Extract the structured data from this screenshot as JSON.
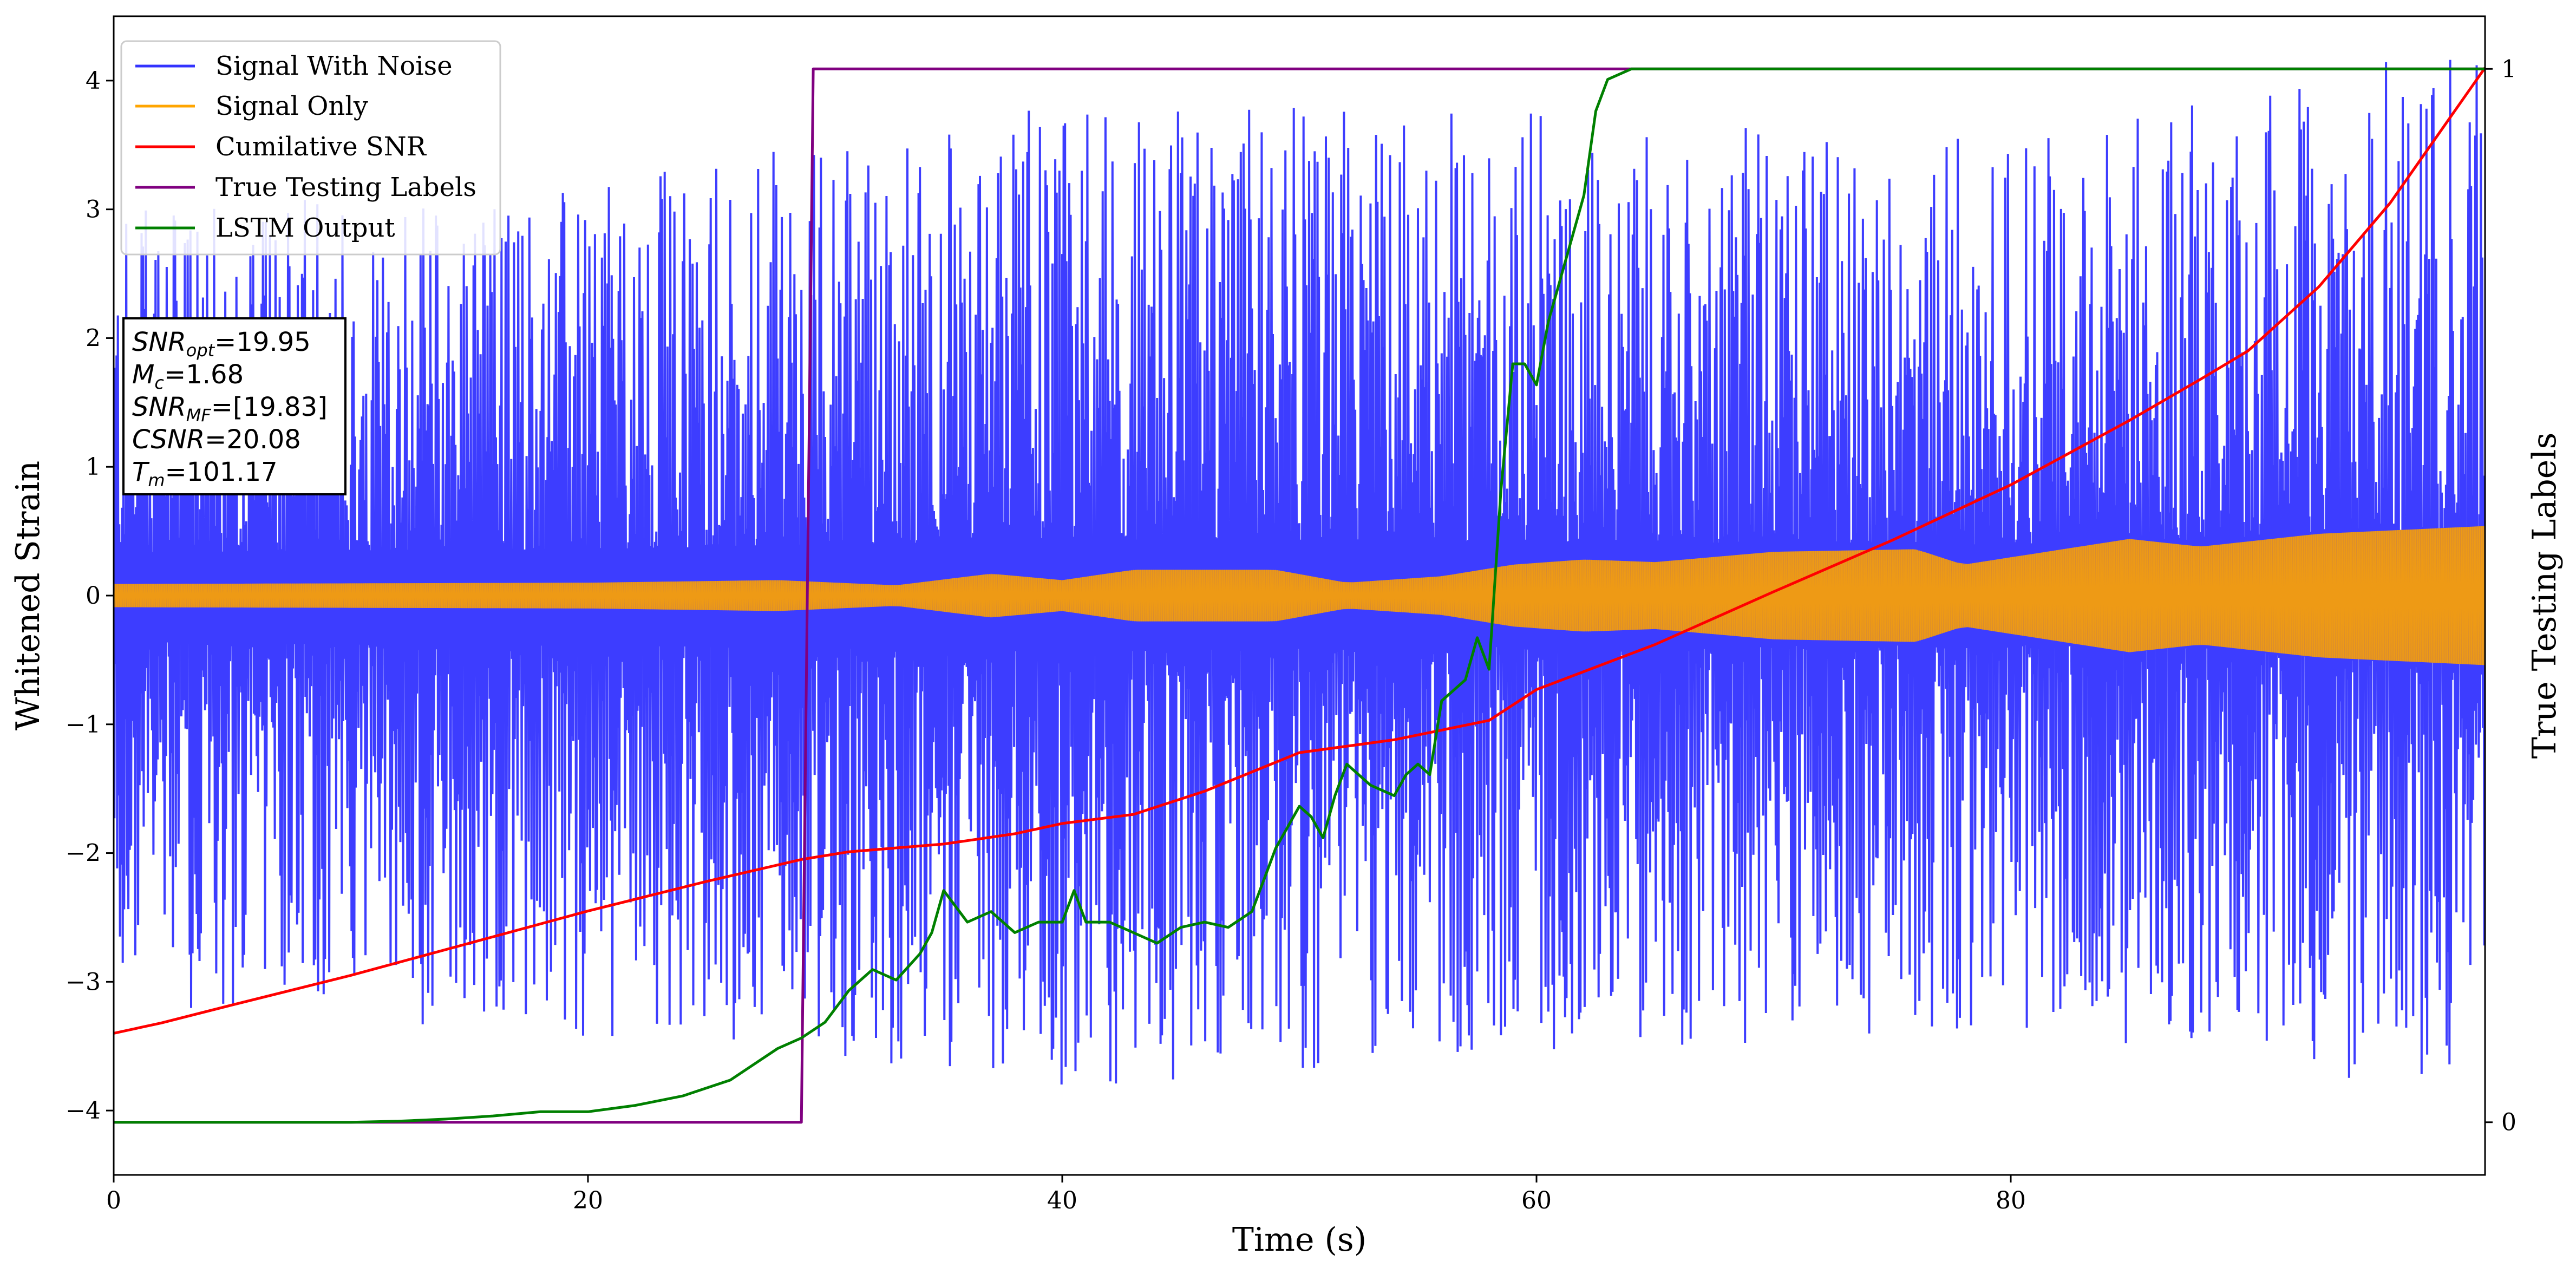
{
  "chart_data": {
    "type": "line",
    "xlabel": "Time (s)",
    "ylabel": "Whitened Strain",
    "y2label": "True Testing Labels",
    "xlim": [
      0,
      100
    ],
    "ylim": [
      -4.5,
      4.5
    ],
    "y2lim": [
      -0.05,
      1.05
    ],
    "x_ticks": [
      0,
      20,
      40,
      60,
      80
    ],
    "y_ticks": [
      -4,
      -3,
      -2,
      -1,
      0,
      1,
      2,
      3,
      4
    ],
    "y2_ticks": [
      0,
      1
    ],
    "grid": false,
    "legend_position": "upper-left",
    "legend": [
      "Signal With Noise",
      "Signal Only",
      "Cumilative SNR",
      "True Testing Labels",
      "LSTM Output"
    ],
    "info_box": [
      {
        "sym": "SNR",
        "sub": "opt",
        "value": "=19.95"
      },
      {
        "sym": "M",
        "sub": "c",
        "value": "=1.68"
      },
      {
        "sym": "SNR",
        "sub": "MF",
        "value": "=[19.83]"
      },
      {
        "sym": "CSNR",
        "sub": "",
        "value": "=20.08"
      },
      {
        "sym": "T",
        "sub": "m",
        "value": "=101.17"
      }
    ],
    "series": [
      {
        "name": "Signal With Noise",
        "color": "#3333ff",
        "axis": "left",
        "description_envelope": [
          {
            "x": 0,
            "upper": 2.8,
            "lower": -3.0
          },
          {
            "x": 20,
            "upper": 3.0,
            "lower": -3.2
          },
          {
            "x": 40,
            "upper": 3.6,
            "lower": -3.6
          },
          {
            "x": 60,
            "upper": 3.5,
            "lower": -3.3
          },
          {
            "x": 80,
            "upper": 3.3,
            "lower": -3.2
          },
          {
            "x": 100,
            "upper": 4.1,
            "lower": -3.7
          }
        ]
      },
      {
        "name": "Signal Only",
        "color": "#ffa500",
        "axis": "left",
        "amplitude": [
          {
            "x": 0,
            "a": 0.09
          },
          {
            "x": 20,
            "a": 0.1
          },
          {
            "x": 28,
            "a": 0.12
          },
          {
            "x": 33,
            "a": 0.08
          },
          {
            "x": 37,
            "a": 0.17
          },
          {
            "x": 40,
            "a": 0.12
          },
          {
            "x": 43,
            "a": 0.2
          },
          {
            "x": 49,
            "a": 0.2
          },
          {
            "x": 52,
            "a": 0.1
          },
          {
            "x": 56,
            "a": 0.15
          },
          {
            "x": 59,
            "a": 0.24
          },
          {
            "x": 62,
            "a": 0.28
          },
          {
            "x": 65,
            "a": 0.26
          },
          {
            "x": 70,
            "a": 0.34
          },
          {
            "x": 76,
            "a": 0.36
          },
          {
            "x": 78,
            "a": 0.24
          },
          {
            "x": 85,
            "a": 0.44
          },
          {
            "x": 88,
            "a": 0.38
          },
          {
            "x": 93,
            "a": 0.48
          },
          {
            "x": 100,
            "a": 0.54
          }
        ]
      },
      {
        "name": "Cumilative SNR",
        "color": "#ff0000",
        "axis": "left",
        "x": [
          0,
          2,
          5,
          10,
          15,
          20,
          25,
          29,
          31,
          35,
          38,
          40,
          43,
          46,
          50,
          54,
          58,
          60,
          65,
          70,
          75,
          80,
          85,
          88,
          90,
          93,
          96,
          100
        ],
        "y": [
          -3.4,
          -3.32,
          -3.18,
          -2.95,
          -2.7,
          -2.45,
          -2.22,
          -2.05,
          -1.99,
          -1.93,
          -1.85,
          -1.77,
          -1.7,
          -1.52,
          -1.22,
          -1.12,
          -0.97,
          -0.73,
          -0.38,
          0.03,
          0.43,
          0.86,
          1.36,
          1.68,
          1.9,
          2.4,
          3.05,
          4.1
        ]
      },
      {
        "name": "True Testing Labels",
        "color": "#800080",
        "axis": "right",
        "x": [
          0,
          29,
          29.5,
          100
        ],
        "y": [
          0,
          0,
          1,
          1
        ]
      },
      {
        "name": "LSTM Output",
        "color": "#008000",
        "axis": "right",
        "x": [
          0,
          10,
          12,
          14,
          16,
          18,
          20,
          22,
          24,
          26,
          27,
          28,
          29,
          30,
          31,
          32,
          33,
          34,
          34.5,
          35,
          36,
          37,
          38,
          39,
          40,
          40.5,
          41,
          42,
          43,
          44,
          45,
          46,
          47,
          48,
          49,
          50,
          50.5,
          51,
          51.5,
          52,
          52.5,
          53,
          54,
          54.5,
          55,
          55.5,
          56,
          57,
          57.5,
          58,
          58.5,
          59,
          59.5,
          60,
          60.5,
          61,
          62,
          62.5,
          63,
          64,
          65,
          66,
          68,
          100
        ],
        "y": [
          0,
          0,
          0.001,
          0.003,
          0.006,
          0.01,
          0.01,
          0.016,
          0.025,
          0.04,
          0.055,
          0.07,
          0.08,
          0.095,
          0.125,
          0.145,
          0.135,
          0.16,
          0.18,
          0.22,
          0.19,
          0.2,
          0.18,
          0.19,
          0.19,
          0.22,
          0.19,
          0.19,
          0.18,
          0.17,
          0.185,
          0.19,
          0.185,
          0.2,
          0.26,
          0.3,
          0.29,
          0.27,
          0.31,
          0.34,
          0.33,
          0.32,
          0.31,
          0.33,
          0.34,
          0.33,
          0.4,
          0.42,
          0.46,
          0.43,
          0.6,
          0.72,
          0.72,
          0.7,
          0.76,
          0.8,
          0.88,
          0.96,
          0.99,
          1.0,
          1.0,
          1.0,
          1.0,
          1.0
        ]
      }
    ]
  }
}
